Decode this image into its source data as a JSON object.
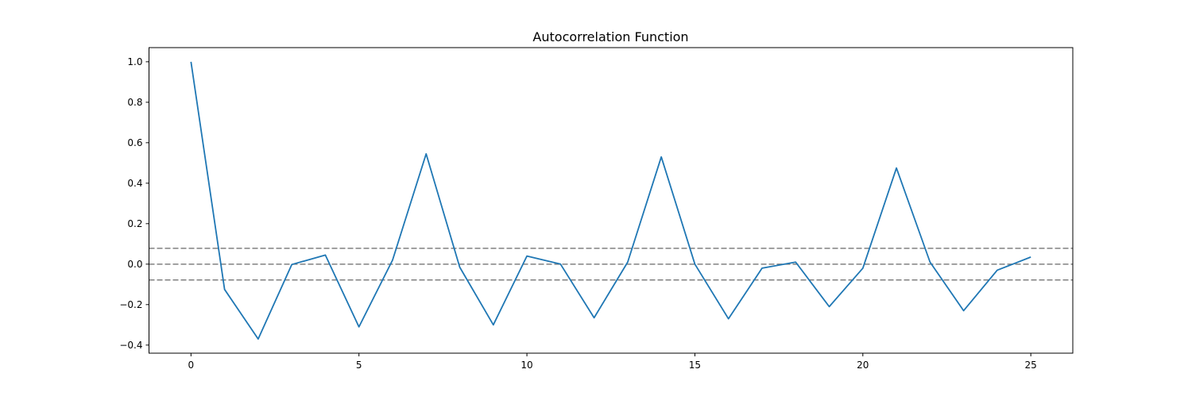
{
  "chart_data": {
    "type": "line",
    "title": "Autocorrelation Function",
    "xlabel": "",
    "ylabel": "",
    "xlim": [
      -1.25,
      26.25
    ],
    "ylim": [
      -0.44,
      1.07
    ],
    "xticks": [
      0,
      5,
      10,
      15,
      20,
      25
    ],
    "xtick_labels": [
      "0",
      "5",
      "10",
      "15",
      "20",
      "25"
    ],
    "yticks": [
      -0.4,
      -0.2,
      0.0,
      0.2,
      0.4,
      0.6,
      0.8,
      1.0
    ],
    "ytick_labels": [
      "−0.4",
      "−0.2",
      "0.0",
      "0.2",
      "0.4",
      "0.6",
      "0.8",
      "1.0"
    ],
    "grid": false,
    "series": [
      {
        "color": "#1f77b4",
        "x": [
          0,
          1,
          2,
          3,
          4,
          5,
          6,
          7,
          8,
          9,
          10,
          11,
          12,
          13,
          14,
          15,
          16,
          17,
          18,
          19,
          20,
          21,
          22,
          23,
          24,
          25
        ],
        "values": [
          1.0,
          -0.125,
          -0.37,
          -0.002,
          0.045,
          -0.31,
          0.02,
          0.545,
          -0.015,
          -0.3,
          0.04,
          0.0,
          -0.265,
          0.01,
          0.53,
          0.0,
          -0.27,
          -0.02,
          0.01,
          -0.21,
          -0.02,
          0.475,
          0.01,
          -0.23,
          -0.03,
          0.035
        ]
      }
    ],
    "reference_lines": [
      {
        "y": 0.078,
        "style": "dashed",
        "color": "#808080"
      },
      {
        "y": 0.0,
        "style": "dashed",
        "color": "#808080"
      },
      {
        "y": -0.078,
        "style": "dashed",
        "color": "#808080"
      }
    ]
  }
}
